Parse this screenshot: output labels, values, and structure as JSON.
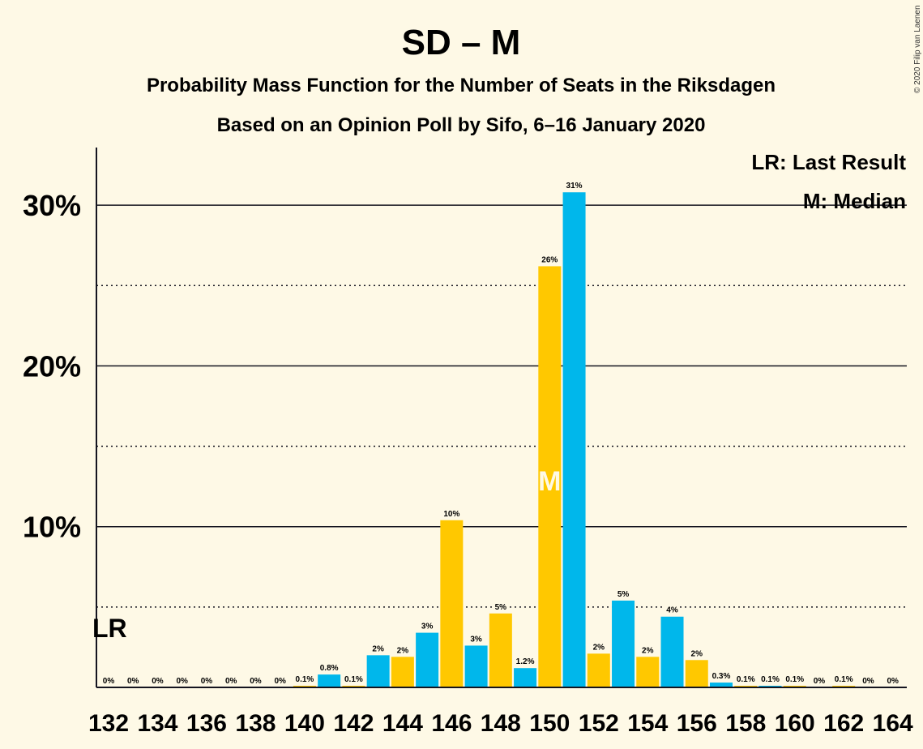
{
  "title": "SD – M",
  "subtitle1": "Probability Mass Function for the Number of Seats in the Riksdagen",
  "subtitle2": "Based on an Opinion Poll by Sifo, 6–16 January 2020",
  "copyright": "© 2020 Filip van Laenen",
  "legend": {
    "lr": "LR: Last Result",
    "m": "M: Median"
  },
  "lr_marker": "LR",
  "median_marker": "M",
  "colors": {
    "background": "#fef9e6",
    "bar_blue": "#00b7eb",
    "bar_yellow": "#ffc800",
    "text": "#14141f"
  },
  "chart_data": {
    "type": "bar",
    "title": "SD – M",
    "xlabel": "",
    "ylabel": "",
    "ylim": [
      0,
      33.5
    ],
    "yticks_major": [
      10,
      20,
      30
    ],
    "ytick_labels": [
      "10%",
      "20%",
      "30%"
    ],
    "yticks_minor": [
      5,
      15,
      25
    ],
    "last_result_seat": 132,
    "median_seat": 150,
    "x_tick_labels": [
      "132",
      "134",
      "136",
      "138",
      "140",
      "142",
      "144",
      "146",
      "148",
      "150",
      "152",
      "154",
      "156",
      "158",
      "160",
      "162",
      "164"
    ],
    "categories": [
      132,
      133,
      134,
      135,
      136,
      137,
      138,
      139,
      140,
      141,
      142,
      143,
      144,
      145,
      146,
      147,
      148,
      149,
      150,
      151,
      152,
      153,
      154,
      155,
      156,
      157,
      158,
      159,
      160,
      161,
      162,
      163,
      164
    ],
    "values": [
      0,
      0,
      0,
      0,
      0,
      0,
      0,
      0,
      0.1,
      0.8,
      0.1,
      2.0,
      1.9,
      3.4,
      10.4,
      2.6,
      4.6,
      1.2,
      26.2,
      30.8,
      2.1,
      5.4,
      1.9,
      4.4,
      1.7,
      0.3,
      0.1,
      0.1,
      0.1,
      0,
      0.1,
      0,
      0
    ],
    "labels": [
      "0%",
      "0%",
      "0%",
      "0%",
      "0%",
      "0%",
      "0%",
      "0%",
      "0.1%",
      "0.8%",
      "0.1%",
      "2%",
      "2%",
      "3%",
      "10%",
      "3%",
      "5%",
      "1.2%",
      "26%",
      "31%",
      "2%",
      "5%",
      "2%",
      "4%",
      "2%",
      "0.3%",
      "0.1%",
      "0.1%",
      "0.1%",
      "0%",
      "0.1%",
      "0%",
      "0%"
    ],
    "colors_by_parity": {
      "even": "#ffc800",
      "odd": "#00b7eb"
    },
    "grid": true,
    "legend_position": "top-right"
  }
}
